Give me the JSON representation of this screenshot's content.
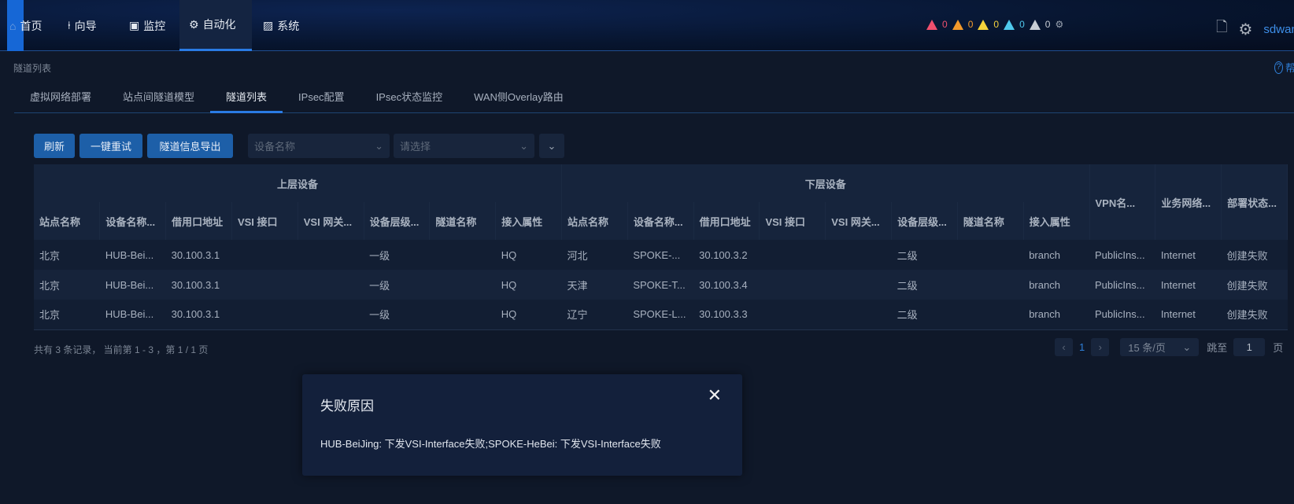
{
  "nav": {
    "items": [
      {
        "label": "首页",
        "icon": "home-icon"
      },
      {
        "label": "向导",
        "icon": "guide-icon"
      },
      {
        "label": "监控",
        "icon": "monitor-icon"
      },
      {
        "label": "自动化",
        "icon": "automation-icon",
        "active": true
      },
      {
        "label": "系统",
        "icon": "system-icon"
      }
    ]
  },
  "alerts": [
    {
      "count": "0",
      "color": "#f0506e"
    },
    {
      "count": "0",
      "color": "#f39a2b"
    },
    {
      "count": "0",
      "color": "#f5d33c"
    },
    {
      "count": "0",
      "color": "#4fc9ec"
    },
    {
      "count": "0",
      "color": "#c8cdd4"
    }
  ],
  "user": "sdwan",
  "help": "帮助",
  "breadcrumb": "隧道列表",
  "tabs": [
    "虚拟网络部署",
    "站点间隧道模型",
    "隧道列表",
    "IPsec配置",
    "IPsec状态监控",
    "WAN侧Overlay路由"
  ],
  "active_tab": 2,
  "toolbar": {
    "refresh": "刷新",
    "retry": "一键重试",
    "export": "隧道信息导出",
    "device_placeholder": "设备名称",
    "select_placeholder": "请选择"
  },
  "table": {
    "group_upper": "上层设备",
    "group_lower": "下层设备",
    "sub_columns": [
      "站点名称",
      "设备名称...",
      "借用口地址",
      "VSI 接口",
      "VSI 网关...",
      "设备层级...",
      "隧道名称",
      "接入属性"
    ],
    "extra_columns": [
      "VPN名...",
      "业务网络...",
      "部署状态..."
    ],
    "rows": [
      [
        "北京",
        "HUB-Bei...",
        "30.100.3.1",
        "",
        "",
        "一级",
        "",
        "HQ",
        "河北",
        "SPOKE-...",
        "30.100.3.2",
        "",
        "",
        "二级",
        "",
        "branch",
        "PublicIns...",
        "Internet",
        "创建失败"
      ],
      [
        "北京",
        "HUB-Bei...",
        "30.100.3.1",
        "",
        "",
        "一级",
        "",
        "HQ",
        "天津",
        "SPOKE-T...",
        "30.100.3.4",
        "",
        "",
        "二级",
        "",
        "branch",
        "PublicIns...",
        "Internet",
        "创建失败"
      ],
      [
        "北京",
        "HUB-Bei...",
        "30.100.3.1",
        "",
        "",
        "一级",
        "",
        "HQ",
        "辽宁",
        "SPOKE-L...",
        "30.100.3.3",
        "",
        "",
        "二级",
        "",
        "branch",
        "PublicIns...",
        "Internet",
        "创建失败"
      ]
    ]
  },
  "footer": {
    "summary": "共有 3 条记录， 当前第 1 - 3 ，第 1 / 1 页",
    "page": "1",
    "page_size": "15 条/页",
    "jump_label": "跳至",
    "jump_value": "1",
    "page_suffix": "页"
  },
  "dialog": {
    "title": "失败原因",
    "message": "HUB-BeiJing: 下发VSI-Interface失败;SPOKE-HeBei: 下发VSI-Interface失败"
  }
}
